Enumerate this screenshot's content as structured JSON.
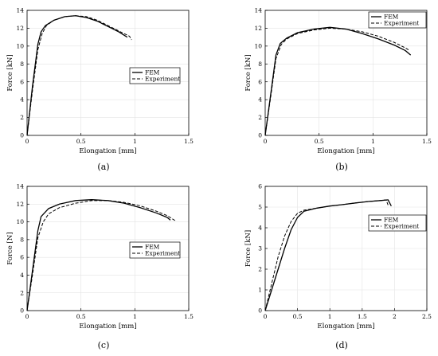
{
  "chart_data": [
    {
      "type": "line",
      "caption": "(a)",
      "xlabel": "Elongation [mm]",
      "ylabel": "Force [kN]",
      "xlim": [
        0,
        1.5
      ],
      "ylim": [
        0,
        14
      ],
      "xticks": [
        0,
        0.5,
        1,
        1.5
      ],
      "yticks": [
        0,
        2,
        4,
        6,
        8,
        10,
        12,
        14
      ],
      "grid": true,
      "legend_position": "center-right",
      "series": [
        {
          "name": "FEM",
          "style": "solid",
          "color": "#000000",
          "x": [
            0,
            0.05,
            0.1,
            0.13,
            0.17,
            0.25,
            0.35,
            0.45,
            0.55,
            0.65,
            0.75,
            0.85,
            0.93
          ],
          "y": [
            0,
            5.5,
            10.2,
            11.6,
            12.3,
            12.9,
            13.3,
            13.4,
            13.2,
            12.8,
            12.2,
            11.6,
            11.0
          ]
        },
        {
          "name": "Experiment",
          "style": "dashed",
          "color": "#000000",
          "x": [
            0,
            0.05,
            0.1,
            0.14,
            0.18,
            0.25,
            0.35,
            0.45,
            0.55,
            0.65,
            0.75,
            0.85,
            0.95,
            0.97
          ],
          "y": [
            0,
            5.0,
            9.6,
            11.4,
            12.3,
            12.9,
            13.3,
            13.4,
            13.3,
            12.9,
            12.3,
            11.7,
            11.1,
            10.7
          ]
        }
      ]
    },
    {
      "type": "line",
      "caption": "(b)",
      "xlabel": "Elongation [mm]",
      "ylabel": "Force [kN]",
      "xlim": [
        0,
        1.5
      ],
      "ylim": [
        0,
        14
      ],
      "xticks": [
        0,
        0.5,
        1,
        1.5
      ],
      "yticks": [
        0,
        2,
        4,
        6,
        8,
        10,
        12,
        14
      ],
      "grid": true,
      "legend_position": "top-right",
      "series": [
        {
          "name": "FEM",
          "style": "solid",
          "color": "#000000",
          "x": [
            0,
            0.05,
            0.1,
            0.14,
            0.2,
            0.3,
            0.45,
            0.6,
            0.75,
            0.9,
            1.05,
            1.2,
            1.3,
            1.35
          ],
          "y": [
            0,
            4.5,
            9.0,
            10.3,
            10.9,
            11.5,
            11.9,
            12.1,
            11.9,
            11.4,
            10.8,
            10.1,
            9.5,
            9.0
          ]
        },
        {
          "name": "Experiment",
          "style": "dashed",
          "color": "#000000",
          "x": [
            0,
            0.05,
            0.1,
            0.15,
            0.2,
            0.3,
            0.45,
            0.6,
            0.75,
            0.9,
            1.05,
            1.2,
            1.3,
            1.34
          ],
          "y": [
            0,
            4.2,
            8.6,
            10.2,
            10.8,
            11.4,
            11.8,
            12.0,
            11.9,
            11.6,
            11.1,
            10.4,
            9.8,
            9.5
          ]
        }
      ]
    },
    {
      "type": "line",
      "caption": "(c)",
      "xlabel": "Elongation [mm]",
      "ylabel": "Force [N]",
      "xlim": [
        0,
        1.5
      ],
      "ylim": [
        0,
        14
      ],
      "xticks": [
        0,
        0.5,
        1,
        1.5
      ],
      "yticks": [
        0,
        2,
        4,
        6,
        8,
        10,
        12,
        14
      ],
      "grid": true,
      "legend_position": "bottom-right",
      "series": [
        {
          "name": "FEM",
          "style": "solid",
          "color": "#000000",
          "x": [
            0,
            0.05,
            0.1,
            0.13,
            0.2,
            0.3,
            0.45,
            0.6,
            0.75,
            0.9,
            1.05,
            1.2,
            1.3,
            1.33
          ],
          "y": [
            0,
            4.5,
            9.0,
            10.6,
            11.5,
            12.0,
            12.4,
            12.5,
            12.4,
            12.1,
            11.6,
            11.0,
            10.5,
            10.2
          ]
        },
        {
          "name": "Experiment",
          "style": "dashed",
          "color": "#000000",
          "x": [
            0,
            0.05,
            0.1,
            0.15,
            0.2,
            0.3,
            0.45,
            0.6,
            0.75,
            0.9,
            1.05,
            1.2,
            1.3,
            1.38
          ],
          "y": [
            0,
            4.0,
            8.2,
            10.0,
            10.9,
            11.6,
            12.1,
            12.4,
            12.4,
            12.2,
            11.8,
            11.2,
            10.7,
            10.1
          ]
        }
      ]
    },
    {
      "type": "line",
      "caption": "(d)",
      "xlabel": "Elongation [mm]",
      "ylabel": "Force [kN]",
      "xlim": [
        0,
        2.5
      ],
      "ylim": [
        0,
        6
      ],
      "xticks": [
        0,
        0.5,
        1,
        1.5,
        2,
        2.5
      ],
      "yticks": [
        0,
        1,
        2,
        3,
        4,
        5,
        6
      ],
      "grid": true,
      "legend_position": "center-right",
      "series": [
        {
          "name": "FEM",
          "style": "solid",
          "color": "#000000",
          "x": [
            0,
            0.1,
            0.2,
            0.3,
            0.4,
            0.5,
            0.6,
            0.8,
            1.0,
            1.2,
            1.4,
            1.6,
            1.8,
            1.9,
            1.95
          ],
          "y": [
            0,
            1.0,
            2.0,
            3.0,
            3.9,
            4.5,
            4.8,
            4.95,
            5.05,
            5.12,
            5.2,
            5.27,
            5.32,
            5.35,
            5.05
          ]
        },
        {
          "name": "Experiment",
          "style": "dashed",
          "color": "#000000",
          "x": [
            0,
            0.1,
            0.2,
            0.3,
            0.4,
            0.5,
            0.6,
            0.8,
            1.0,
            1.2,
            1.4,
            1.6,
            1.8,
            1.87,
            1.9
          ],
          "y": [
            0,
            1.3,
            2.6,
            3.6,
            4.3,
            4.7,
            4.85,
            4.95,
            5.05,
            5.12,
            5.2,
            5.27,
            5.32,
            5.35,
            5.1
          ]
        }
      ]
    }
  ]
}
